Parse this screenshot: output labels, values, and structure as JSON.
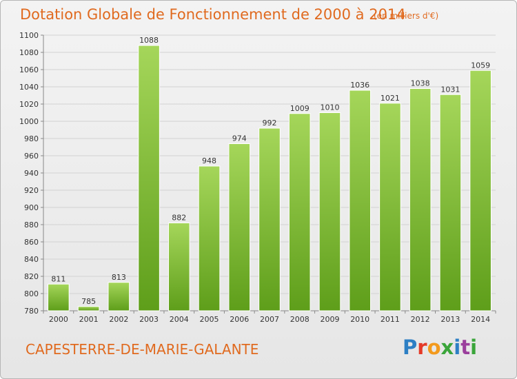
{
  "header": {
    "title": "Dotation Globale de Fonctionnement de 2000 à 2014",
    "unit": "(en milliers d'€)"
  },
  "footer": {
    "commune": "CAPESTERRE-DE-MARIE-GALANTE",
    "logo": {
      "text": "Proxiti",
      "letters": [
        "P",
        "r",
        "o",
        "x",
        "i",
        "t",
        "i"
      ]
    }
  },
  "colors": {
    "title": "#e06a1f",
    "bar_light": "#a5d65a",
    "bar_dark": "#5e9e1a"
  },
  "chart_data": {
    "type": "bar",
    "title": "Dotation Globale de Fonctionnement de 2000 à 2014",
    "xlabel": "",
    "ylabel": "",
    "categories": [
      "2000",
      "2001",
      "2002",
      "2003",
      "2004",
      "2005",
      "2006",
      "2007",
      "2008",
      "2009",
      "2010",
      "2011",
      "2012",
      "2013",
      "2014"
    ],
    "values": [
      811,
      785,
      813,
      1088,
      882,
      948,
      974,
      992,
      1009,
      1010,
      1036,
      1021,
      1038,
      1031,
      1059
    ],
    "data_labels": [
      "811",
      "785",
      "813",
      "1088",
      "882",
      "948",
      "974",
      "992",
      "1009",
      "1010",
      "1036",
      "1021",
      "1038",
      "1031",
      "1059"
    ],
    "ylim": [
      780,
      1100
    ],
    "yticks": [
      "780",
      "800",
      "820",
      "840",
      "860",
      "880",
      "900",
      "920",
      "940",
      "960",
      "980",
      "1000",
      "1020",
      "1040",
      "1060",
      "1080",
      "1100"
    ],
    "grid": true,
    "legend": "none"
  }
}
